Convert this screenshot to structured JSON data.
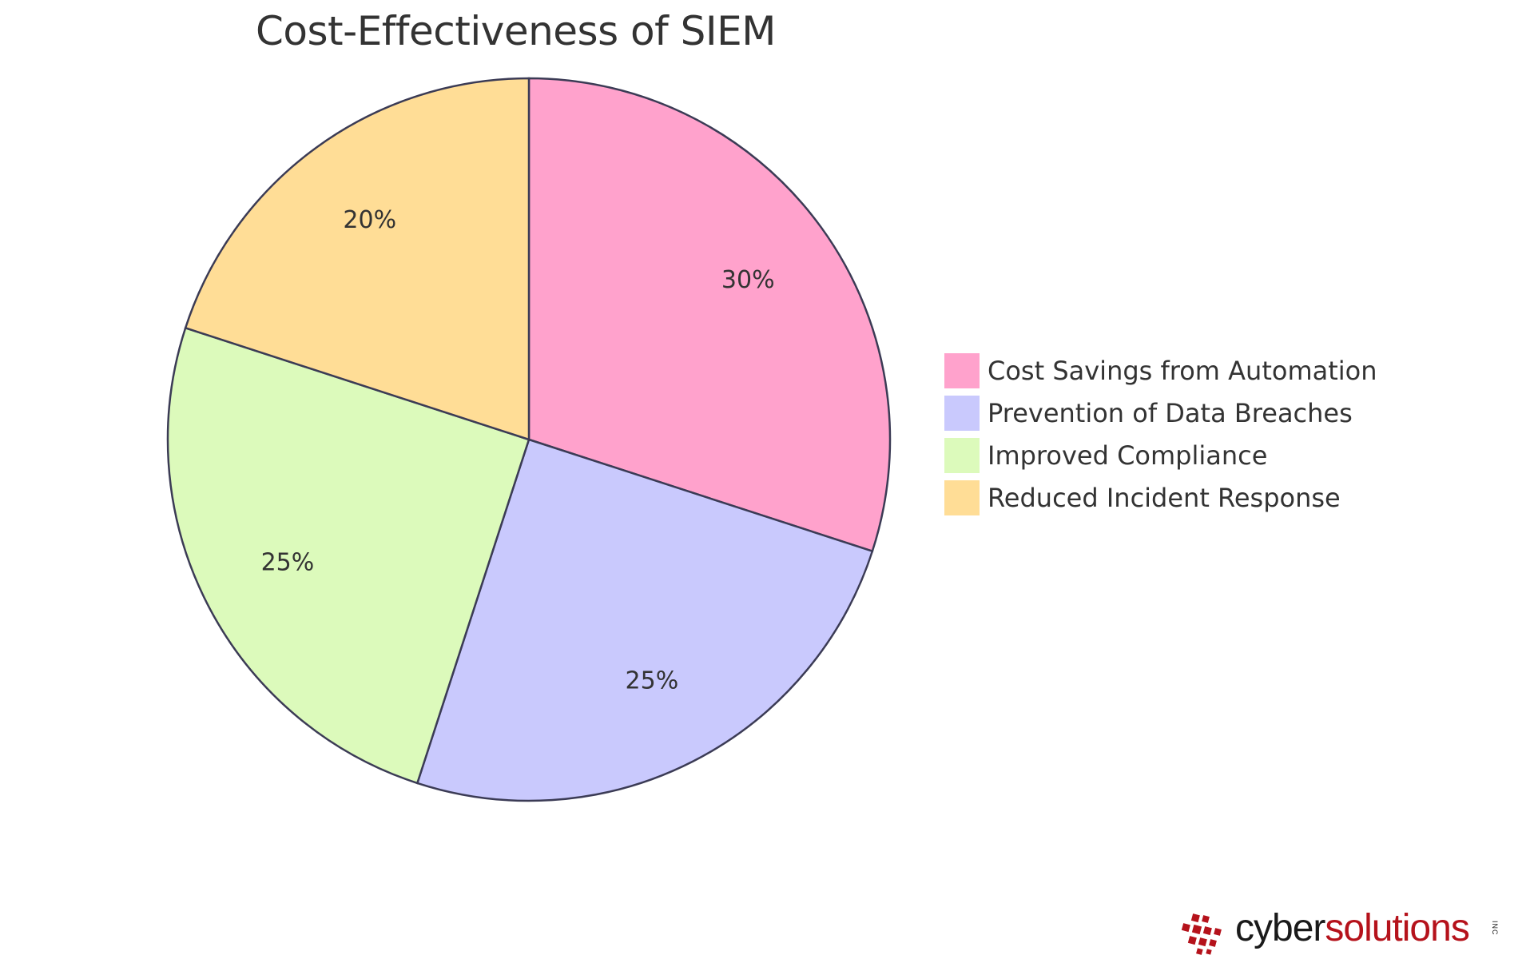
{
  "chart_data": {
    "type": "pie",
    "title": "Cost-Effectiveness of SIEM",
    "categories": [
      "Cost Savings from Automation",
      "Prevention of Data Breaches",
      "Improved Compliance",
      "Reduced Incident Response"
    ],
    "values": [
      30,
      25,
      25,
      20
    ],
    "labels": [
      "30%",
      "25%",
      "25%",
      "20%"
    ],
    "colors": [
      "#ffa2cc",
      "#c9c9fd",
      "#dcfabb",
      "#ffdd96"
    ],
    "legend_placement": "right"
  },
  "logo": {
    "text_part1": "cyber",
    "text_part2": "solutions",
    "suffix": "INC"
  }
}
